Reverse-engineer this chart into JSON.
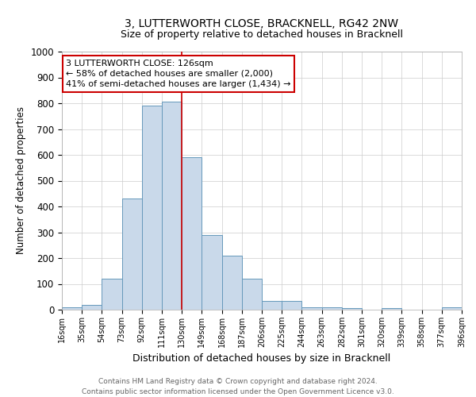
{
  "title": "3, LUTTERWORTH CLOSE, BRACKNELL, RG42 2NW",
  "subtitle": "Size of property relative to detached houses in Bracknell",
  "xlabel": "Distribution of detached houses by size in Bracknell",
  "ylabel": "Number of detached properties",
  "footer_line1": "Contains HM Land Registry data © Crown copyright and database right 2024.",
  "footer_line2": "Contains public sector information licensed under the Open Government Licence v3.0.",
  "bin_edges": [
    16,
    35,
    54,
    73,
    92,
    111,
    130,
    149,
    168,
    187,
    206,
    225,
    244,
    263,
    282,
    301,
    320,
    339,
    358,
    377,
    396
  ],
  "bin_labels": [
    "16sqm",
    "35sqm",
    "54sqm",
    "73sqm",
    "92sqm",
    "111sqm",
    "130sqm",
    "149sqm",
    "168sqm",
    "187sqm",
    "206sqm",
    "225sqm",
    "244sqm",
    "263sqm",
    "282sqm",
    "301sqm",
    "320sqm",
    "339sqm",
    "358sqm",
    "377sqm",
    "396sqm"
  ],
  "counts": [
    10,
    20,
    120,
    430,
    790,
    805,
    590,
    290,
    210,
    120,
    35,
    35,
    10,
    10,
    5,
    0,
    5,
    0,
    0,
    8
  ],
  "bar_facecolor": "#c9d9ea",
  "bar_edgecolor": "#6699bb",
  "vline_x": 130,
  "vline_color": "#cc0000",
  "ylim": [
    0,
    1000
  ],
  "yticks": [
    0,
    100,
    200,
    300,
    400,
    500,
    600,
    700,
    800,
    900,
    1000
  ],
  "annotation_text": "3 LUTTERWORTH CLOSE: 126sqm\n← 58% of detached houses are smaller (2,000)\n41% of semi-detached houses are larger (1,434) →",
  "annotation_box_facecolor": "#ffffff",
  "annotation_box_edgecolor": "#cc0000",
  "background_color": "#ffffff",
  "grid_color": "#cccccc",
  "title_fontsize": 10,
  "subtitle_fontsize": 9,
  "ylabel_fontsize": 8.5,
  "xlabel_fontsize": 9,
  "footer_fontsize": 6.5,
  "annotation_fontsize": 8,
  "ytick_fontsize": 8.5,
  "xtick_fontsize": 7
}
